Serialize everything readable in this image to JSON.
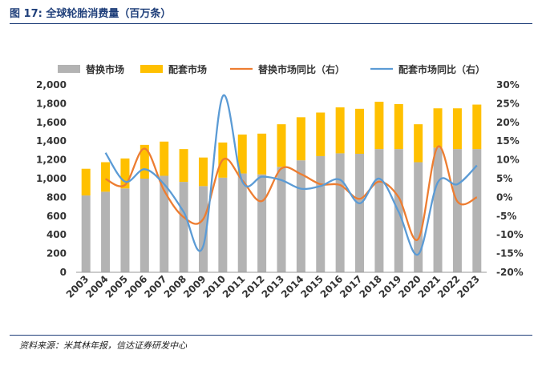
{
  "header": {
    "title": "图 17:  全球轮胎消费量（百万条）"
  },
  "footer": {
    "source": "资料来源：米其林年报，信达证券研发中心"
  },
  "chart_data": {
    "type": "bar",
    "title": "图 17:  全球轮胎消费量（百万条）",
    "categories": [
      "2003",
      "2004",
      "2005",
      "2006",
      "2007",
      "2008",
      "2009",
      "2010",
      "2011",
      "2012",
      "2013",
      "2014",
      "2015",
      "2016",
      "2017",
      "2018",
      "2019",
      "2020",
      "2021",
      "2022",
      "2023"
    ],
    "series": [
      {
        "name": "替换市场",
        "kind": "bar",
        "axis": "left",
        "color": "#b3b3b3",
        "values": [
          820,
          860,
          895,
          1000,
          1030,
          965,
          920,
          1010,
          1055,
          1045,
          1125,
          1195,
          1240,
          1270,
          1265,
          1315,
          1315,
          1175,
          1330,
          1315,
          1315
        ]
      },
      {
        "name": "配套市场",
        "kind": "bar",
        "axis": "left",
        "color": "#ffc000",
        "values": [
          285,
          315,
          320,
          360,
          365,
          350,
          305,
          375,
          415,
          435,
          455,
          460,
          465,
          490,
          480,
          505,
          480,
          405,
          420,
          435,
          475
        ]
      },
      {
        "name": "替换市场同比（右）",
        "kind": "line",
        "axis": "right",
        "color": "#ed7d31",
        "values": [
          null,
          4.9,
          3.3,
          13.0,
          1.8,
          -5.3,
          -5.8,
          10.0,
          4.5,
          -1.0,
          7.7,
          6.2,
          3.5,
          3.3,
          -0.4,
          4.2,
          0.0,
          -11.1,
          13.5,
          -1.1,
          0.0
        ]
      },
      {
        "name": "配套市场同比（右）",
        "kind": "line",
        "axis": "right",
        "color": "#5b9bd5",
        "values": [
          null,
          11.9,
          4.2,
          7.5,
          3.5,
          -3.9,
          -13.0,
          27.0,
          4.2,
          5.5,
          4.6,
          2.3,
          3.0,
          4.7,
          -1.6,
          5.0,
          -3.9,
          -15.2,
          4.0,
          3.5,
          8.5
        ]
      }
    ],
    "left_axis": {
      "min": 0,
      "max": 2000,
      "step": 200,
      "ticks": [
        "0",
        "200",
        "400",
        "600",
        "800",
        "1,000",
        "1,200",
        "1,400",
        "1,600",
        "1,800",
        "2,000"
      ]
    },
    "right_axis": {
      "min": -20,
      "max": 30,
      "step": 5,
      "ticks": [
        "-20%",
        "-15%",
        "-10%",
        "-5%",
        "0%",
        "5%",
        "10%",
        "15%",
        "20%",
        "25%",
        "30%"
      ]
    },
    "legend": {
      "position": "top",
      "items": [
        "替换市场",
        "配套市场",
        "替换市场同比（右）",
        "配套市场同比（右）"
      ]
    },
    "grid": false
  }
}
